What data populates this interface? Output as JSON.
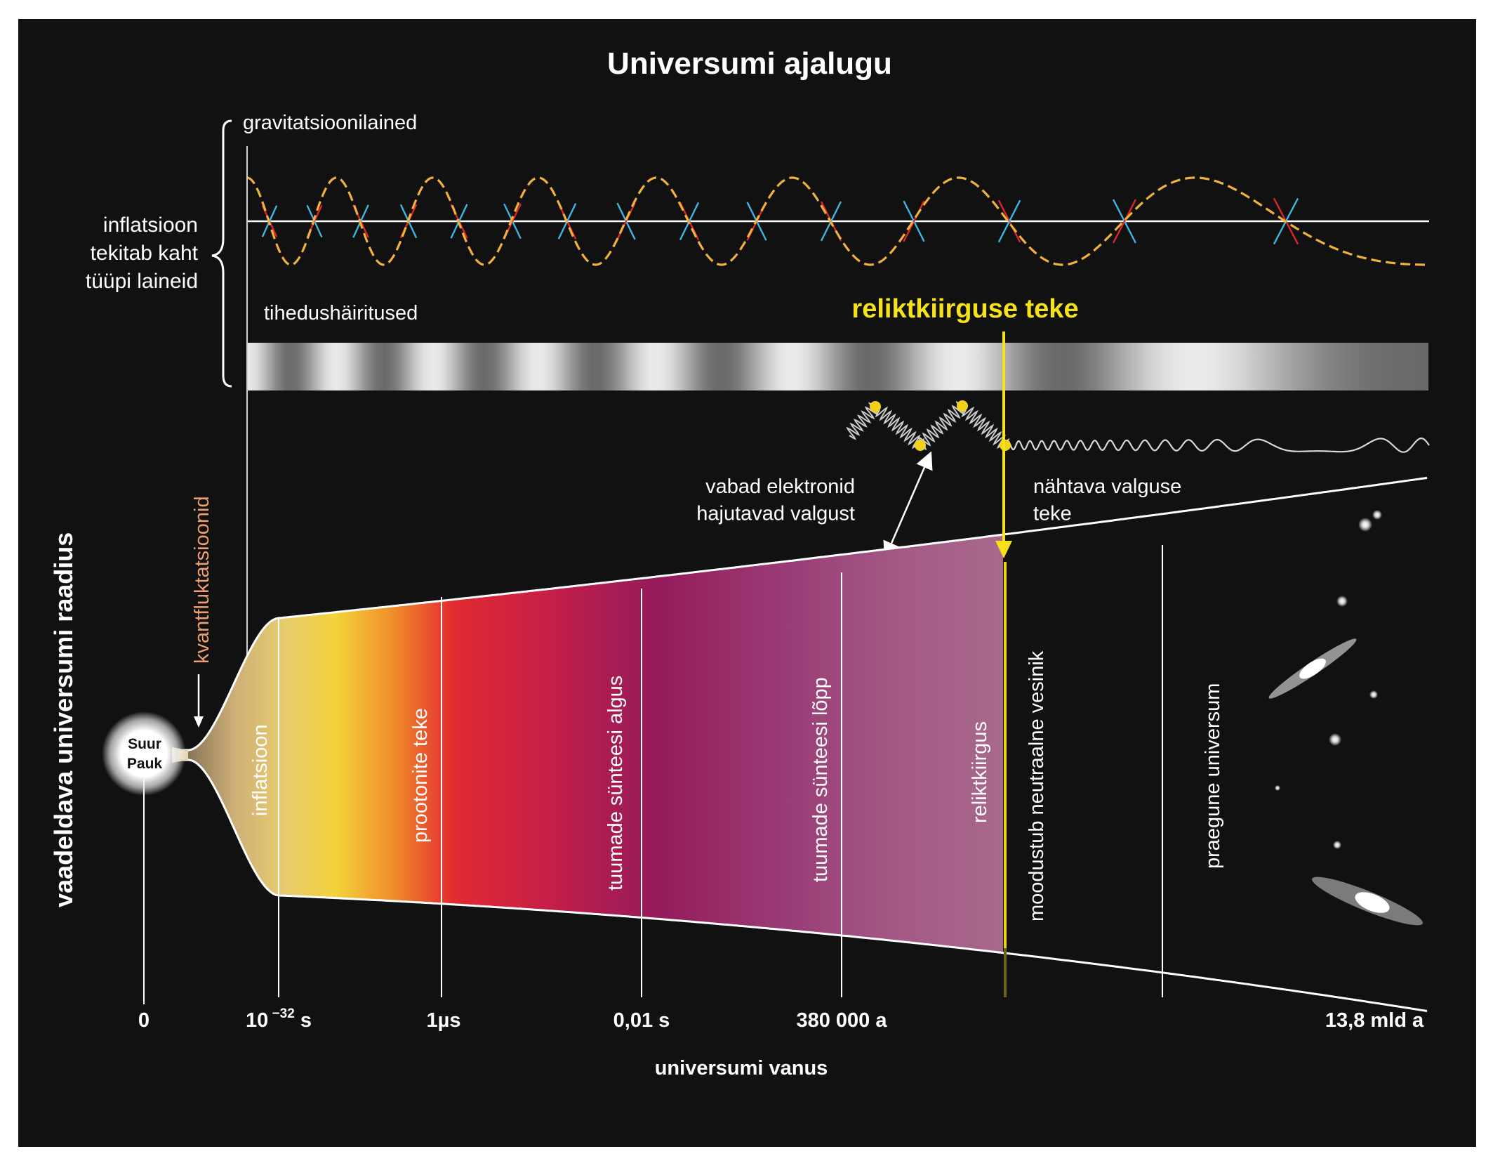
{
  "title": "Universumi ajalugu",
  "colors": {
    "background": "#111111",
    "wave_yellow": "#f0b23a",
    "arrow_cyan": "#3db8e6",
    "arrow_red": "#e0252e",
    "relic_yellow": "#f5e21a",
    "kvant_orange": "#f0a070"
  },
  "waves": {
    "brace_label": "inflatsioon\ntekitab kaht\ntüüpi laineid",
    "gravitational_label": "gravitatsioonilained",
    "density_label": "tihedushäiritused"
  },
  "relic": {
    "title": "reliktkiirguse teke",
    "free_electrons": "vabad elektronid\nhajutavad valgust",
    "visible_light": "nähtava valguse\nteke"
  },
  "big_bang": {
    "label": "Suur\nPauk"
  },
  "kvant": {
    "label": "kvantfluktatsioonid"
  },
  "y_axis": {
    "label": "vaadeldava universumi raadius"
  },
  "x_axis": {
    "label": "universumi vanus",
    "ticks": [
      {
        "id": "t0",
        "base": "0",
        "sup": "",
        "unit": ""
      },
      {
        "id": "t1",
        "base": "10",
        "sup": " −32",
        "unit": " s"
      },
      {
        "id": "t2",
        "base": "1µs",
        "sup": "",
        "unit": ""
      },
      {
        "id": "t3",
        "base": "0,01 s",
        "sup": "",
        "unit": ""
      },
      {
        "id": "t4",
        "base": "380 000 a",
        "sup": "",
        "unit": ""
      },
      {
        "id": "t5",
        "base": "13,8 mld a",
        "sup": "",
        "unit": ""
      }
    ]
  },
  "eras": [
    "inflatsioon",
    "prootonite teke",
    "tuumade sünteesi algus",
    "tuumade sünteesi lõpp",
    "reliktkiirgus",
    "moodustub neutraalne vesinik",
    "praegune universum"
  ]
}
